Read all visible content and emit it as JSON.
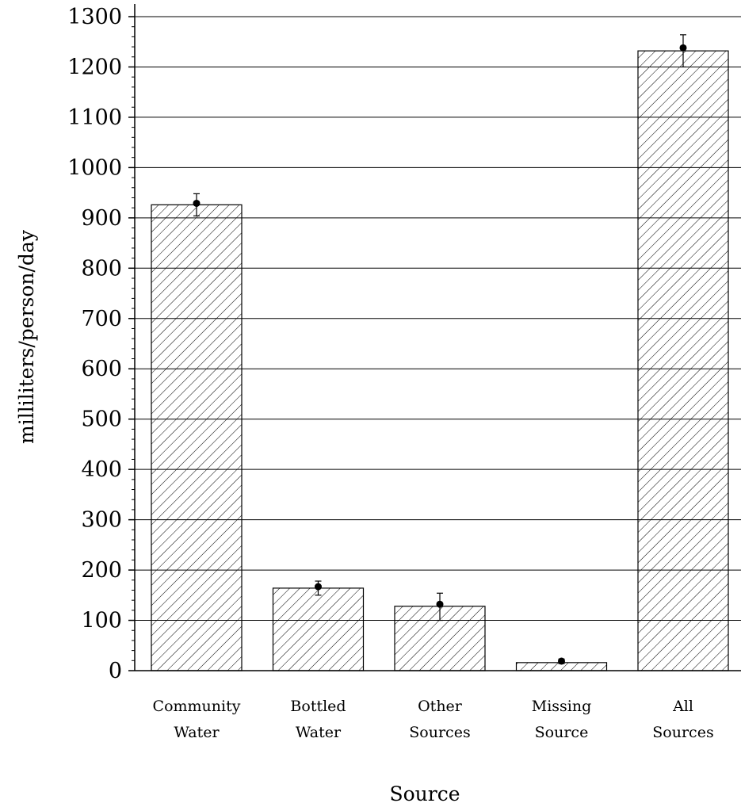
{
  "chart_data": {
    "type": "bar",
    "title": "",
    "xlabel": "Source",
    "ylabel": "milliliters/person/day",
    "ylim": [
      0,
      1300
    ],
    "yticks": [
      0,
      100,
      200,
      300,
      400,
      500,
      600,
      700,
      800,
      900,
      1000,
      1100,
      1200,
      1300
    ],
    "grid": true,
    "legend": "none",
    "bar_fill": "diagonal-hatch",
    "categories": [
      [
        "Community",
        "Water"
      ],
      [
        "Bottled",
        "Water"
      ],
      [
        "Other",
        "Sources"
      ],
      [
        "Missing",
        "Source"
      ],
      [
        "All",
        "Sources"
      ]
    ],
    "values": [
      926,
      164,
      128,
      16,
      1232
    ],
    "points": [
      929,
      167,
      132,
      19,
      1238
    ],
    "error_low": [
      904,
      150,
      100,
      14,
      1200
    ],
    "error_high": [
      948,
      178,
      154,
      23,
      1264
    ]
  }
}
